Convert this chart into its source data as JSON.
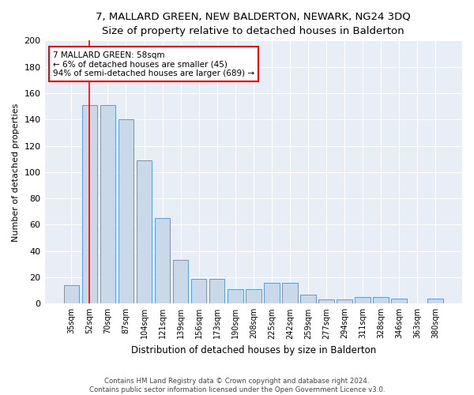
{
  "title": "7, MALLARD GREEN, NEW BALDERTON, NEWARK, NG24 3DQ",
  "subtitle": "Size of property relative to detached houses in Balderton",
  "xlabel": "Distribution of detached houses by size in Balderton",
  "ylabel": "Number of detached properties",
  "categories": [
    "35sqm",
    "52sqm",
    "70sqm",
    "87sqm",
    "104sqm",
    "121sqm",
    "139sqm",
    "156sqm",
    "173sqm",
    "190sqm",
    "208sqm",
    "225sqm",
    "242sqm",
    "259sqm",
    "277sqm",
    "294sqm",
    "311sqm",
    "328sqm",
    "346sqm",
    "363sqm",
    "380sqm"
  ],
  "values": [
    14,
    151,
    151,
    140,
    109,
    65,
    33,
    19,
    19,
    11,
    11,
    16,
    16,
    7,
    3,
    3,
    5,
    5,
    4,
    0,
    4
  ],
  "bar_color": "#c9d9ea",
  "bar_edge_color": "#5b9bd5",
  "annotation_text_line1": "7 MALLARD GREEN: 58sqm",
  "annotation_text_line2": "← 6% of detached houses are smaller (45)",
  "annotation_text_line3": "94% of semi-detached houses are larger (689) →",
  "annotation_box_color": "white",
  "annotation_box_edge": "red",
  "vline_x": 1,
  "vline_color": "red",
  "background_color": "#e8eef5",
  "footer_line1": "Contains HM Land Registry data © Crown copyright and database right 2024.",
  "footer_line2": "Contains public sector information licensed under the Open Government Licence v3.0.",
  "ylim": [
    0,
    200
  ],
  "yticks": [
    0,
    20,
    40,
    60,
    80,
    100,
    120,
    140,
    160,
    180,
    200
  ]
}
